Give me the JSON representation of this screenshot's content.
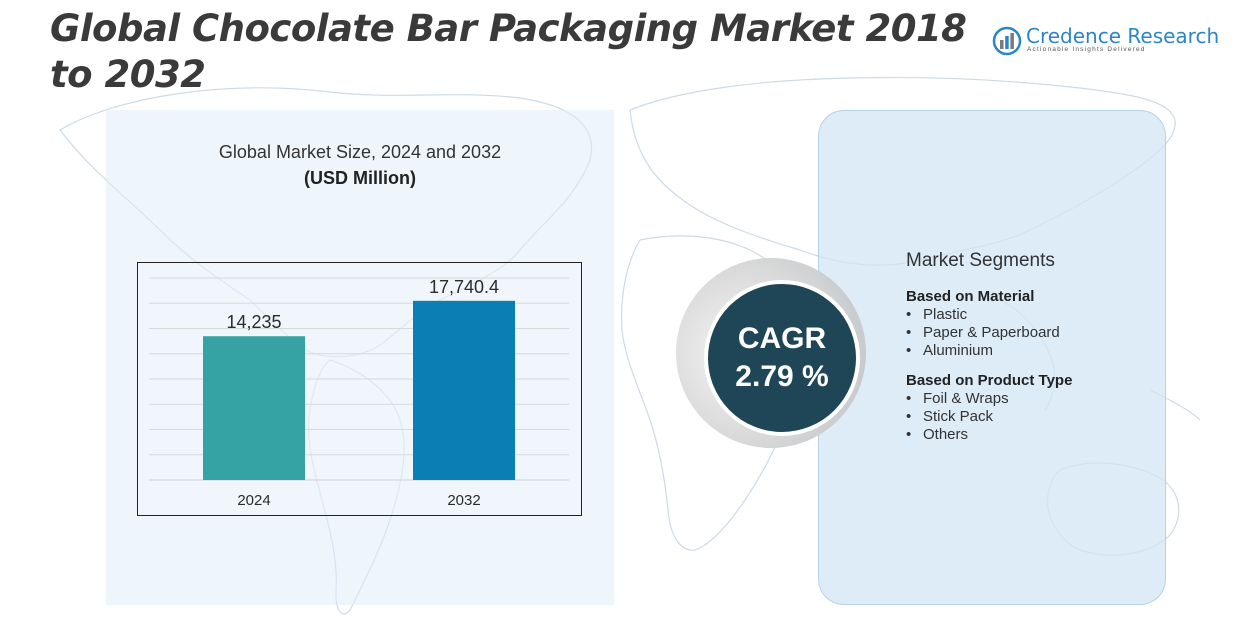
{
  "title": "Global Chocolate Bar Packaging Market 2018 to 2032",
  "logo": {
    "name": "Credence Research",
    "tagline": "Actionable Insights Delivered",
    "colors": [
      "#2a86c7",
      "#7a7a7a"
    ]
  },
  "chart_data": {
    "type": "bar",
    "title": "Global Market Size, 2024 and 2032",
    "unit": "(USD Million)",
    "categories": [
      "2024",
      "2032"
    ],
    "values": [
      14235,
      17740.4
    ],
    "value_labels": [
      "14,235",
      "17,740.4"
    ],
    "colors": [
      "#35a3a3",
      "#0b7fb3"
    ],
    "ylim": [
      0,
      20000
    ],
    "grid": true,
    "legend": "none"
  },
  "cagr": {
    "label": "CAGR",
    "value": "2.79 %",
    "color": "#1e4656"
  },
  "segments": {
    "heading": "Market Segments",
    "groups": [
      {
        "title": "Based on Material",
        "items": [
          "Plastic",
          "Paper & Paperboard",
          "Aluminium"
        ]
      },
      {
        "title": "Based on Product Type",
        "items": [
          "Foil & Wraps",
          "Stick Pack",
          "Others"
        ]
      }
    ]
  },
  "colors": {
    "left_panel": "#e6eff8",
    "right_panel": "#d6e7f4",
    "title_text": "#3a3a3a"
  }
}
